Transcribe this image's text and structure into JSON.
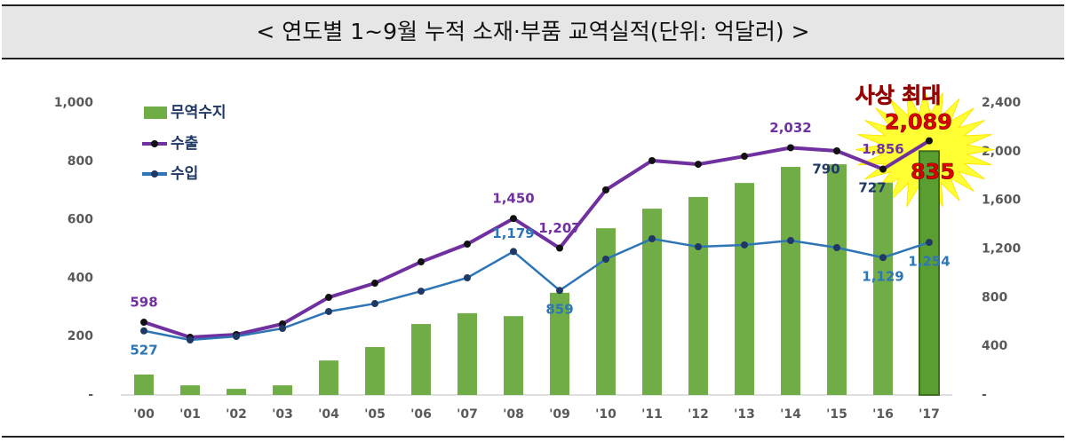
{
  "chart_data": {
    "type": "bar-line",
    "title": "< 연도별 1~9월 누적 소재·부품 교역실적(단위: 억달러) >",
    "annotation": "사상 최대",
    "categories": [
      "'00",
      "'01",
      "'02",
      "'03",
      "'04",
      "'05",
      "'06",
      "'07",
      "'08",
      "'09",
      "'10",
      "'11",
      "'12",
      "'13",
      "'14",
      "'15",
      "'16",
      "'17"
    ],
    "ylim": [
      0,
      1000
    ],
    "yticks": [
      {
        "value": 0,
        "label": "-"
      },
      200,
      400,
      600,
      800,
      {
        "value": 1000,
        "label": "1,000"
      }
    ],
    "y2lim": [
      0,
      2400
    ],
    "y2ticks": [
      {
        "value": 0,
        "label": "-"
      },
      400,
      800,
      {
        "value": 1200,
        "label": "1,200"
      },
      {
        "value": 1600,
        "label": "1,600"
      },
      {
        "value": 2000,
        "label": "2,000"
      },
      {
        "value": 2400,
        "label": "2,400"
      }
    ],
    "series": [
      {
        "name": "무역수지",
        "type": "bar",
        "color": "#70ad47",
        "values": [
          70,
          33,
          21,
          33,
          118,
          164,
          243,
          280,
          270,
          350,
          571,
          638,
          678,
          726,
          781,
          790,
          727,
          835
        ],
        "value_labels": [
          null,
          null,
          null,
          null,
          null,
          null,
          null,
          null,
          null,
          null,
          null,
          null,
          null,
          null,
          null,
          "790",
          "727",
          "835"
        ]
      },
      {
        "name": "수출",
        "type": "line",
        "axis": "y2",
        "color": "#7030a0",
        "values": [
          598,
          474,
          496,
          584,
          802,
          919,
          1094,
          1240,
          1450,
          1207,
          1685,
          1926,
          1896,
          1962,
          2032,
          2006,
          1856,
          2089
        ],
        "value_labels": [
          "598",
          null,
          null,
          null,
          null,
          null,
          null,
          null,
          "1,450",
          "1,207",
          null,
          null,
          null,
          null,
          "2,032",
          null,
          "1,856",
          "2,089"
        ]
      },
      {
        "name": "수입",
        "type": "line",
        "axis": "y2",
        "color": "#2e75b6",
        "values": [
          527,
          452,
          481,
          547,
          686,
          751,
          853,
          963,
          1179,
          859,
          1116,
          1284,
          1218,
          1233,
          1269,
          1211,
          1129,
          1254
        ],
        "value_labels": [
          "527",
          null,
          null,
          null,
          null,
          null,
          null,
          null,
          "1,179",
          "859",
          null,
          null,
          null,
          null,
          null,
          null,
          "1,129",
          "1,254"
        ]
      }
    ]
  }
}
